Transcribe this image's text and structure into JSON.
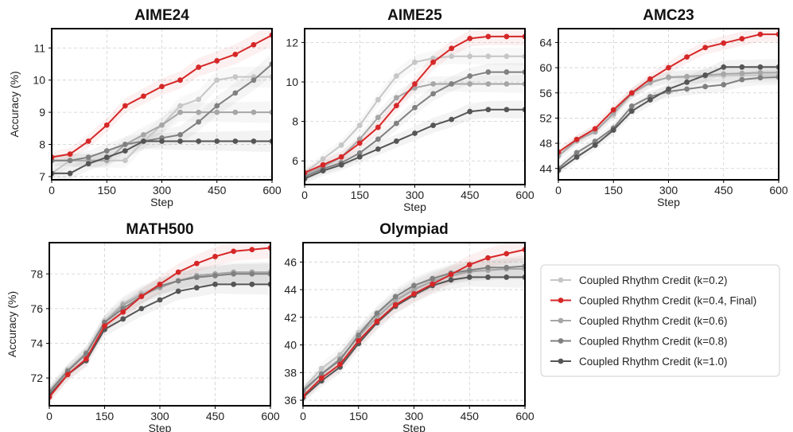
{
  "chart_data": [
    {
      "type": "line",
      "title": "AIME24",
      "xlabel": "Step",
      "ylabel": "Accuracy (%)",
      "xlim": [
        0,
        600
      ],
      "ylim": [
        6.9,
        11.6
      ],
      "xticks": [
        0,
        150,
        300,
        450,
        600
      ],
      "xtick_labels": [
        "0",
        "150",
        "300",
        "450",
        "600"
      ],
      "yticks": [
        7,
        8,
        9,
        10,
        11
      ],
      "ytick_labels": [
        "7",
        "8",
        "9",
        "10",
        "11"
      ],
      "grid": true,
      "x": [
        0,
        50,
        100,
        150,
        200,
        250,
        300,
        350,
        400,
        450,
        500,
        550,
        600
      ],
      "series": [
        {
          "name": "k=0.2",
          "values": [
            7.1,
            7.5,
            7.5,
            7.5,
            7.5,
            8.1,
            8.6,
            9.2,
            9.4,
            10.0,
            10.1,
            10.1,
            10.1
          ]
        },
        {
          "name": "k=0.4",
          "values": [
            7.6,
            7.7,
            8.1,
            8.6,
            9.2,
            9.5,
            9.8,
            10.0,
            10.4,
            10.6,
            10.8,
            11.1,
            11.4
          ]
        },
        {
          "name": "k=0.6",
          "values": [
            7.5,
            7.5,
            7.5,
            7.5,
            8.0,
            8.3,
            8.6,
            9.0,
            9.0,
            9.0,
            9.0,
            9.0,
            9.0
          ]
        },
        {
          "name": "k=0.8",
          "values": [
            7.5,
            7.5,
            7.6,
            7.8,
            8.0,
            8.1,
            8.2,
            8.3,
            8.7,
            9.2,
            9.6,
            10.0,
            10.5
          ]
        },
        {
          "name": "k=1.0",
          "values": [
            7.1,
            7.1,
            7.4,
            7.6,
            7.8,
            8.1,
            8.1,
            8.1,
            8.1,
            8.1,
            8.1,
            8.1,
            8.1
          ]
        }
      ]
    },
    {
      "type": "line",
      "title": "AIME25",
      "xlabel": "Step",
      "ylabel": "",
      "xlim": [
        0,
        600
      ],
      "ylim": [
        4.8,
        12.7
      ],
      "xticks": [
        0,
        150,
        300,
        450,
        600
      ],
      "xtick_labels": [
        "0",
        "150",
        "300",
        "450",
        "600"
      ],
      "yticks": [
        6,
        8,
        10,
        12
      ],
      "ytick_labels": [
        "6",
        "8",
        "10",
        "12"
      ],
      "grid": true,
      "x": [
        0,
        50,
        100,
        150,
        200,
        250,
        300,
        350,
        400,
        450,
        500,
        550,
        600
      ],
      "series": [
        {
          "name": "k=0.2",
          "values": [
            5.4,
            6.1,
            6.8,
            7.8,
            9.1,
            10.3,
            11.0,
            11.2,
            11.3,
            11.3,
            11.3,
            11.3,
            11.3
          ]
        },
        {
          "name": "k=0.4",
          "values": [
            5.4,
            5.8,
            6.2,
            6.9,
            7.7,
            8.8,
            9.9,
            11.0,
            11.7,
            12.2,
            12.3,
            12.3,
            12.3
          ]
        },
        {
          "name": "k=0.6",
          "values": [
            5.3,
            5.7,
            6.2,
            7.1,
            8.2,
            9.2,
            9.7,
            9.9,
            9.9,
            9.9,
            9.9,
            9.9,
            9.9
          ]
        },
        {
          "name": "k=0.8",
          "values": [
            5.2,
            5.6,
            5.9,
            6.4,
            7.1,
            7.9,
            8.7,
            9.4,
            9.9,
            10.3,
            10.5,
            10.5,
            10.5
          ]
        },
        {
          "name": "k=1.0",
          "values": [
            5.1,
            5.5,
            5.8,
            6.2,
            6.6,
            7.0,
            7.4,
            7.8,
            8.1,
            8.5,
            8.6,
            8.6,
            8.6
          ]
        }
      ]
    },
    {
      "type": "line",
      "title": "AMC23",
      "xlabel": "Step",
      "ylabel": "",
      "xlim": [
        0,
        600
      ],
      "ylim": [
        42.2,
        66.2
      ],
      "xticks": [
        0,
        150,
        300,
        450,
        600
      ],
      "xtick_labels": [
        "0",
        "150",
        "300",
        "450",
        "600"
      ],
      "yticks": [
        44,
        48,
        52,
        56,
        60,
        64
      ],
      "ytick_labels": [
        "44",
        "48",
        "52",
        "56",
        "60",
        "64"
      ],
      "grid": true,
      "x": [
        0,
        50,
        100,
        150,
        200,
        250,
        300,
        350,
        400,
        450,
        500,
        550,
        600
      ],
      "series": [
        {
          "name": "k=0.2",
          "values": [
            46.0,
            48.3,
            50.0,
            52.5,
            55.8,
            57.8,
            58.4,
            58.5,
            58.6,
            58.7,
            58.8,
            58.8,
            58.8
          ]
        },
        {
          "name": "k=0.4",
          "values": [
            46.6,
            48.6,
            50.3,
            53.3,
            56.0,
            58.2,
            60.0,
            61.7,
            63.2,
            63.9,
            64.6,
            65.3,
            65.3
          ]
        },
        {
          "name": "k=0.6",
          "values": [
            46.0,
            48.5,
            49.8,
            52.8,
            55.9,
            57.6,
            58.5,
            58.6,
            58.8,
            59.0,
            59.1,
            59.2,
            59.2
          ]
        },
        {
          "name": "k=0.8",
          "values": [
            44.0,
            46.5,
            48.3,
            50.4,
            53.9,
            55.4,
            56.2,
            56.6,
            57.0,
            57.3,
            58.1,
            58.4,
            58.5
          ]
        },
        {
          "name": "k=1.0",
          "values": [
            43.7,
            45.8,
            47.7,
            50.1,
            53.1,
            54.9,
            56.6,
            57.7,
            58.8,
            60.1,
            60.1,
            60.1,
            60.1
          ]
        }
      ]
    },
    {
      "type": "line",
      "title": "MATH500",
      "xlabel": "Step",
      "ylabel": "Accuracy (%)",
      "xlim": [
        0,
        600
      ],
      "ylim": [
        70.4,
        79.8
      ],
      "xticks": [
        0,
        150,
        300,
        450,
        600
      ],
      "xtick_labels": [
        "0",
        "150",
        "300",
        "450",
        "600"
      ],
      "yticks": [
        72,
        74,
        76,
        78
      ],
      "ytick_labels": [
        "72",
        "74",
        "76",
        "78"
      ],
      "grid": true,
      "x": [
        0,
        50,
        100,
        150,
        200,
        250,
        300,
        350,
        400,
        450,
        500,
        550,
        600
      ],
      "series": [
        {
          "name": "k=0.2",
          "values": [
            71.3,
            72.5,
            73.5,
            75.3,
            76.3,
            76.9,
            77.3,
            77.6,
            77.8,
            77.9,
            78.0,
            78.0,
            78.0
          ]
        },
        {
          "name": "k=0.4",
          "values": [
            70.9,
            72.2,
            73.1,
            75.0,
            75.8,
            76.7,
            77.4,
            78.1,
            78.6,
            79.0,
            79.3,
            79.4,
            79.5
          ]
        },
        {
          "name": "k=0.6",
          "values": [
            71.1,
            72.4,
            73.4,
            75.2,
            76.2,
            76.8,
            77.2,
            77.6,
            77.9,
            78.0,
            78.1,
            78.1,
            78.1
          ]
        },
        {
          "name": "k=0.8",
          "values": [
            71.2,
            72.4,
            73.4,
            75.2,
            76.0,
            76.7,
            77.3,
            77.6,
            77.8,
            77.9,
            78.0,
            78.0,
            78.0
          ]
        },
        {
          "name": "k=1.0",
          "values": [
            71.0,
            72.2,
            73.0,
            74.8,
            75.4,
            76.0,
            76.5,
            77.0,
            77.2,
            77.4,
            77.4,
            77.4,
            77.4
          ]
        }
      ]
    },
    {
      "type": "line",
      "title": "Olympiad",
      "xlabel": "Step",
      "ylabel": "",
      "xlim": [
        0,
        600
      ],
      "ylim": [
        35.6,
        47.4
      ],
      "xticks": [
        0,
        150,
        300,
        450,
        600
      ],
      "xtick_labels": [
        "0",
        "150",
        "300",
        "450",
        "600"
      ],
      "yticks": [
        36,
        38,
        40,
        42,
        44,
        46
      ],
      "ytick_labels": [
        "36",
        "38",
        "40",
        "42",
        "44",
        "46"
      ],
      "grid": true,
      "x": [
        0,
        50,
        100,
        150,
        200,
        250,
        300,
        350,
        400,
        450,
        500,
        550,
        600
      ],
      "series": [
        {
          "name": "k=0.2",
          "values": [
            36.8,
            38.3,
            39.3,
            40.9,
            42.2,
            43.3,
            44.1,
            44.7,
            45.1,
            45.3,
            45.4,
            45.5,
            45.5
          ]
        },
        {
          "name": "k=0.4",
          "values": [
            36.3,
            37.6,
            38.6,
            40.3,
            41.7,
            42.9,
            43.7,
            44.4,
            45.1,
            45.8,
            46.3,
            46.6,
            46.9
          ]
        },
        {
          "name": "k=0.6",
          "values": [
            36.6,
            37.9,
            39.0,
            40.6,
            42.0,
            43.2,
            44.0,
            44.6,
            45.0,
            45.3,
            45.4,
            45.5,
            45.5
          ]
        },
        {
          "name": "k=0.8",
          "values": [
            36.7,
            37.9,
            38.9,
            40.7,
            42.3,
            43.5,
            44.3,
            44.8,
            45.2,
            45.4,
            45.6,
            45.6,
            45.7
          ]
        },
        {
          "name": "k=1.0",
          "values": [
            36.2,
            37.4,
            38.4,
            40.1,
            41.6,
            42.8,
            43.6,
            44.3,
            44.7,
            44.9,
            44.9,
            44.9,
            44.9
          ]
        }
      ]
    }
  ],
  "series_styles": [
    {
      "key": "k=0.2",
      "color": "#c6c6c6",
      "band": "#bbbbbb"
    },
    {
      "key": "k=0.4",
      "color": "#d62728",
      "band": "#e8898a"
    },
    {
      "key": "k=0.6",
      "color": "#a6a6a6",
      "band": "#aaaaaa"
    },
    {
      "key": "k=0.8",
      "color": "#808080",
      "band": "#999999"
    },
    {
      "key": "k=1.0",
      "color": "#555555",
      "band": "#888888"
    }
  ],
  "legend": {
    "placement": "right",
    "entries": [
      "Coupled Rhythm Credit (k=0.2)",
      "Coupled Rhythm Credit (k=0.4, Final)",
      "Coupled Rhythm Credit (k=0.6)",
      "Coupled Rhythm Credit (k=0.8)",
      "Coupled Rhythm Credit (k=1.0)"
    ]
  }
}
